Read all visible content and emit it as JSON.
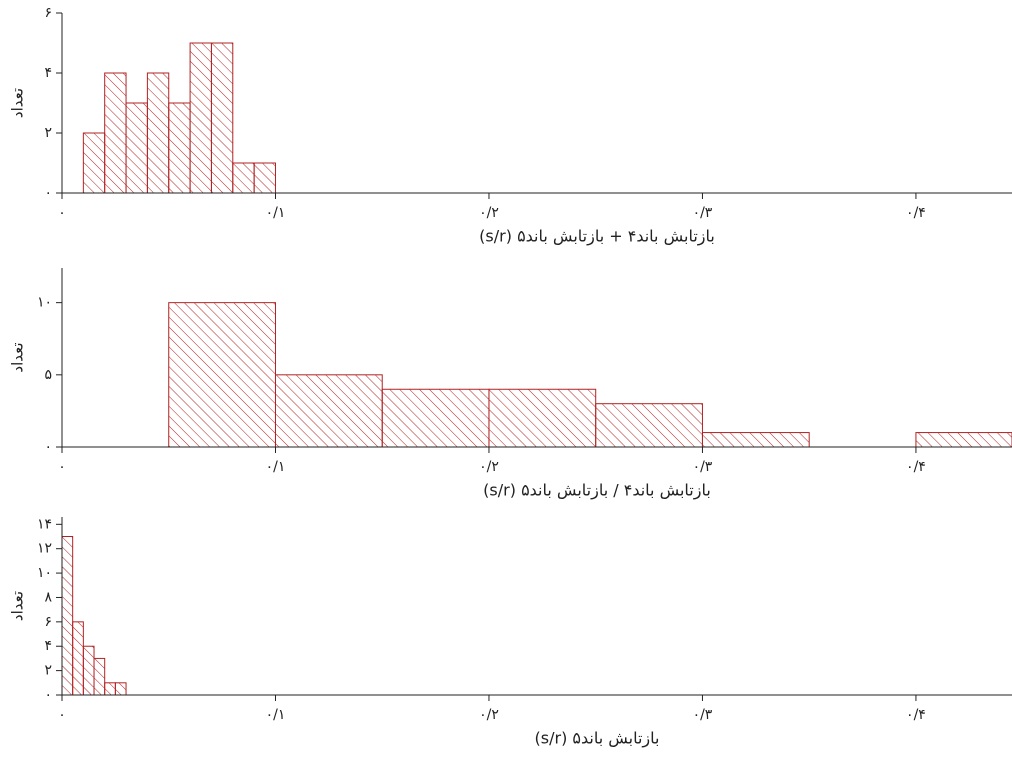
{
  "chart_data": [
    {
      "type": "histogram",
      "xlabel": "بازتابش باند۴ + بازتابش باند۵ (s/r)",
      "ylabel": "تعداد",
      "color": "#b22222",
      "bins": [
        0.01,
        0.02,
        0.03,
        0.04,
        0.05,
        0.06,
        0.07,
        0.08,
        0.09,
        0.1
      ],
      "values": [
        2,
        4,
        3,
        4,
        3,
        5,
        5,
        1,
        1
      ],
      "xlim": [
        0,
        0.445
      ],
      "ylim": [
        0,
        6
      ],
      "xticks": [
        {
          "value": 0,
          "label": "۰"
        },
        {
          "value": 0.1,
          "label": "۰/۱"
        },
        {
          "value": 0.2,
          "label": "۰/۲"
        },
        {
          "value": 0.3,
          "label": "۰/۳"
        },
        {
          "value": 0.4,
          "label": "۰/۴"
        }
      ],
      "yticks": [
        {
          "value": 0,
          "label": "۰"
        },
        {
          "value": 2,
          "label": "۲"
        },
        {
          "value": 4,
          "label": "۴"
        },
        {
          "value": 6,
          "label": "۶"
        }
      ]
    },
    {
      "type": "histogram",
      "xlabel": "بازتابش باند۴ / بازتابش باند۵ (s/r)",
      "ylabel": "تعداد",
      "color": "#b22222",
      "bins": [
        0.05,
        0.1,
        0.15,
        0.2,
        0.25,
        0.3,
        0.35,
        0.4,
        0.45
      ],
      "values": [
        10,
        5,
        4,
        4,
        3,
        1,
        0,
        1
      ],
      "xlim": [
        0,
        0.445
      ],
      "ylim": [
        0,
        12.4
      ],
      "xticks": [
        {
          "value": 0,
          "label": "۰"
        },
        {
          "value": 0.1,
          "label": "۰/۱"
        },
        {
          "value": 0.2,
          "label": "۰/۲"
        },
        {
          "value": 0.3,
          "label": "۰/۳"
        },
        {
          "value": 0.4,
          "label": "۰/۴"
        }
      ],
      "yticks": [
        {
          "value": 0,
          "label": "۰"
        },
        {
          "value": 5,
          "label": "۵"
        },
        {
          "value": 10,
          "label": "۱۰"
        }
      ]
    },
    {
      "type": "histogram",
      "xlabel": "بازتابش باند۵ (s/r)",
      "ylabel": "تعداد",
      "color": "#b22222",
      "bins": [
        0,
        0.005,
        0.01,
        0.015,
        0.02,
        0.025,
        0.03
      ],
      "values": [
        13,
        6,
        4,
        3,
        1,
        1
      ],
      "xlim": [
        0,
        0.445
      ],
      "ylim": [
        0,
        14.6
      ],
      "xticks": [
        {
          "value": 0,
          "label": "۰"
        },
        {
          "value": 0.1,
          "label": "۰/۱"
        },
        {
          "value": 0.2,
          "label": "۰/۲"
        },
        {
          "value": 0.3,
          "label": "۰/۳"
        },
        {
          "value": 0.4,
          "label": "۰/۴"
        }
      ],
      "yticks": [
        {
          "value": 0,
          "label": "۰"
        },
        {
          "value": 2,
          "label": "۲"
        },
        {
          "value": 4,
          "label": "۴"
        },
        {
          "value": 6,
          "label": "۶"
        },
        {
          "value": 8,
          "label": "۸"
        },
        {
          "value": 10,
          "label": "۱۰"
        },
        {
          "value": 12,
          "label": "۱۲"
        },
        {
          "value": 14,
          "label": "۱۴"
        }
      ]
    }
  ]
}
